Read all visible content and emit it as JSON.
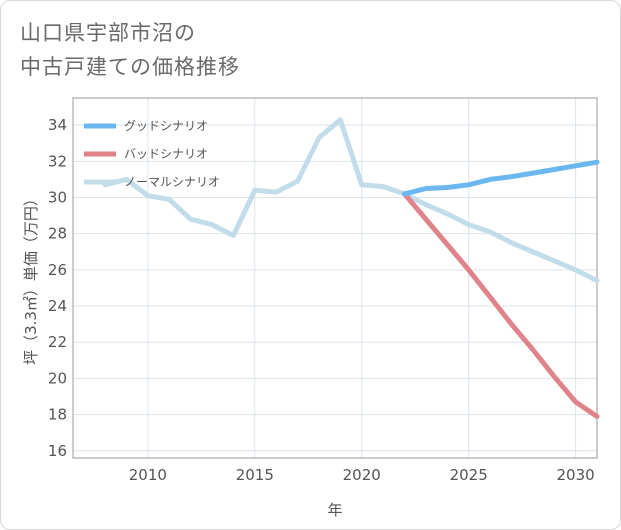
{
  "chart_data": {
    "type": "line",
    "title_lines": [
      "山口県宇部市沼の",
      "中古戸建ての価格推移"
    ],
    "xlabel": "年",
    "ylabel": "坪（3.3㎡）単価（万円）",
    "xlim": [
      2006.5,
      2031
    ],
    "ylim": [
      15.6,
      35.5
    ],
    "x_ticks": [
      2010,
      2015,
      2020,
      2025,
      2030
    ],
    "y_ticks": [
      16,
      18,
      20,
      22,
      24,
      26,
      28,
      30,
      32,
      34
    ],
    "grid": true,
    "legend_position": "top-left",
    "series": [
      {
        "name": "グッドシナリオ",
        "color": "#6bb8f0",
        "x": [
          2022,
          2023,
          2024,
          2025,
          2026,
          2027,
          2028,
          2029,
          2030,
          2031
        ],
        "values": [
          30.2,
          30.5,
          30.55,
          30.7,
          31.0,
          31.15,
          31.35,
          31.55,
          31.75,
          31.95
        ]
      },
      {
        "name": "バッドシナリオ",
        "color": "#e0848c",
        "x": [
          2022,
          2023,
          2024,
          2025,
          2026,
          2027,
          2028,
          2029,
          2030,
          2031
        ],
        "values": [
          30.2,
          28.8,
          27.4,
          26.0,
          24.5,
          23.0,
          21.6,
          20.1,
          18.7,
          17.9
        ]
      },
      {
        "name": "ノーマルシナリオ",
        "color": "#c3dcea",
        "x": [
          2008,
          2009,
          2010,
          2011,
          2012,
          2013,
          2014,
          2015,
          2016,
          2017,
          2018,
          2019,
          2020,
          2021,
          2022,
          2023,
          2024,
          2025,
          2026,
          2027,
          2028,
          2029,
          2030,
          2031
        ],
        "values": [
          30.7,
          31.0,
          30.1,
          29.9,
          28.8,
          28.5,
          27.9,
          30.4,
          30.3,
          30.9,
          33.3,
          34.3,
          30.7,
          30.6,
          30.2,
          29.6,
          29.1,
          28.5,
          28.1,
          27.5,
          27.0,
          26.5,
          26.0,
          25.4
        ]
      }
    ]
  }
}
